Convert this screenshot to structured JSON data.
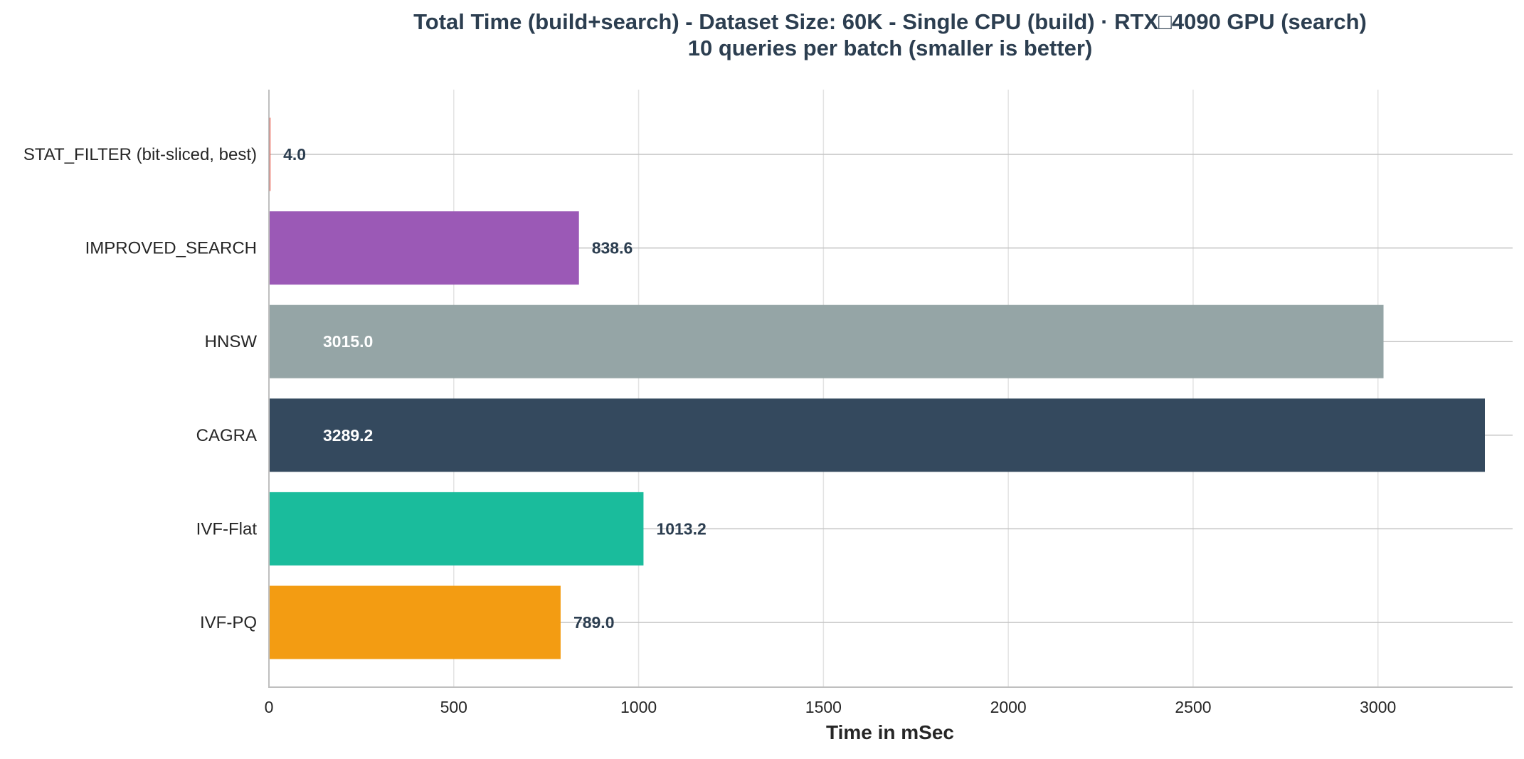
{
  "chart_data": {
    "type": "bar",
    "orientation": "horizontal",
    "title": "Total Time (build+search) - Dataset Size: 60K - Single CPU (build) · RTX□4090 GPU (search)",
    "subtitle": "10 queries per batch (smaller is better)",
    "xlabel": "Time in mSec",
    "ylabel": "",
    "xlim": [
      0,
      3450
    ],
    "xticks": [
      0,
      500,
      1000,
      1500,
      2000,
      2500,
      3000
    ],
    "grid": true,
    "categories": [
      "STAT_FILTER (bit-sliced, best)",
      "IMPROVED_SEARCH",
      "HNSW",
      "CAGRA",
      "IVF-Flat",
      "IVF-PQ"
    ],
    "values": [
      4.0,
      838.6,
      3015.0,
      3289.2,
      1013.2,
      789.0
    ],
    "value_labels": [
      "4.0",
      "838.6",
      "3015.0",
      "3289.2",
      "1013.2",
      "789.0"
    ],
    "colors": [
      "#e74c3c",
      "#9b59b6",
      "#95a5a6",
      "#34495e",
      "#1abc9c",
      "#f39c12"
    ],
    "label_colors": [
      "#2c3e50",
      "#2c3e50",
      "#ffffff",
      "#ffffff",
      "#2c3e50",
      "#2c3e50"
    ],
    "label_inside": [
      false,
      false,
      true,
      true,
      false,
      false
    ]
  }
}
